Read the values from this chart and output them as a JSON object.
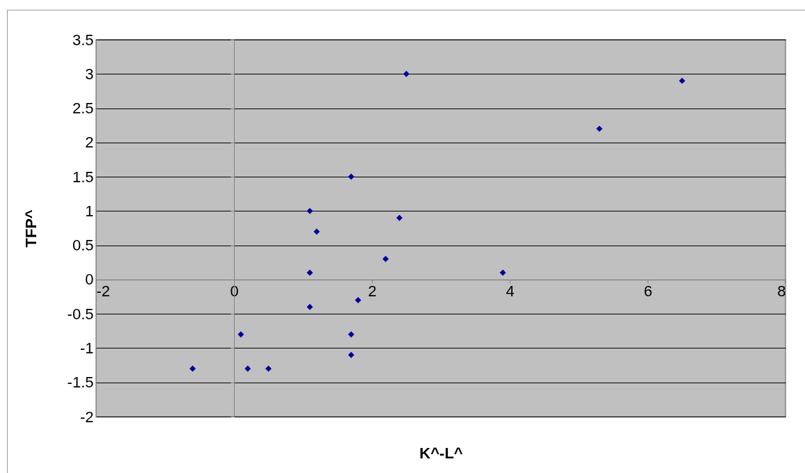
{
  "chart_data": {
    "type": "scatter",
    "xlabel": "K^-L^",
    "ylabel": "TFP^",
    "x": [
      -0.6,
      0.1,
      0.2,
      0.5,
      1.1,
      1.2,
      1.1,
      1.1,
      1.7,
      1.7,
      1.7,
      1.8,
      2.2,
      2.4,
      2.5,
      3.9,
      5.3,
      6.5
    ],
    "series": [
      {
        "color": "#000099",
        "values": [
          -1.3,
          -0.8,
          -1.3,
          -1.3,
          1.0,
          0.7,
          0.1,
          -0.4,
          1.5,
          -0.8,
          -1.1,
          -0.3,
          0.3,
          0.9,
          3.0,
          0.1,
          2.2,
          2.9
        ]
      }
    ],
    "xlim": [
      -2,
      8
    ],
    "xticks": [
      -2,
      0,
      2,
      4,
      6,
      8
    ],
    "ylim": [
      -2,
      3.5
    ],
    "yticks": [
      -2,
      -1.5,
      -1,
      -0.5,
      0,
      0.5,
      1,
      1.5,
      2,
      2.5,
      3,
      3.5
    ],
    "grid": "y",
    "marker": "diamond",
    "legend": false
  }
}
